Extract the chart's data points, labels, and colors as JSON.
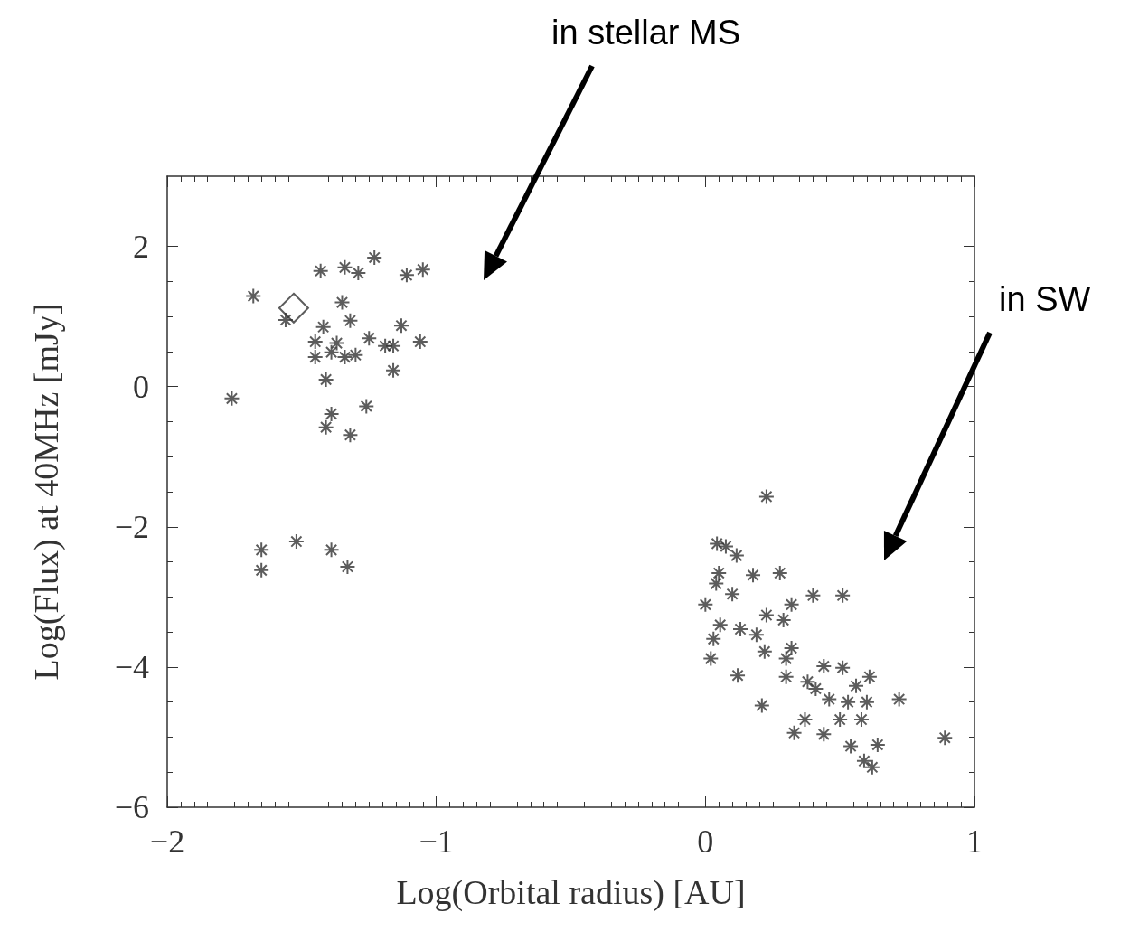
{
  "chart_data": {
    "type": "scatter",
    "xlabel": "Log(Orbital radius) [AU]",
    "ylabel": "Log(Flux) at 40MHz [mJy]",
    "xlim": [
      -2,
      1
    ],
    "xticks": [
      -2,
      -1,
      0,
      1
    ],
    "ylim": [
      -6,
      3
    ],
    "yticks": [
      -6,
      -4,
      -2,
      0,
      2
    ],
    "grid": false,
    "annotations": [
      "in stellar MS",
      "in SW"
    ],
    "series": [
      {
        "color": "#333333",
        "marker": "cross",
        "x": [
          -1.76,
          -1.68,
          -1.56,
          -1.43,
          -1.34,
          -1.29,
          -1.23,
          -1.11,
          -1.05,
          -1.06,
          -1.13,
          -1.16,
          -1.19,
          -1.16,
          -1.25,
          -1.35,
          -1.32,
          -1.42,
          -1.45,
          -1.45,
          -1.39,
          -1.37,
          -1.34,
          -1.3,
          -1.41,
          -1.39,
          -1.41,
          -1.26,
          -1.32,
          -1.65,
          -1.65,
          -1.52,
          -1.39,
          -1.33,
          0.227,
          0.043,
          0.076,
          0.116,
          0.177,
          0.277,
          0.05,
          0.04,
          0.1,
          0.0,
          0.4,
          0.51,
          0.32,
          0.227,
          0.29,
          0.055,
          0.13,
          0.19,
          0.03,
          0.02,
          0.22,
          0.32,
          0.3,
          0.44,
          0.51,
          0.12,
          0.3,
          0.38,
          0.41,
          0.46,
          0.56,
          0.61,
          0.53,
          0.6,
          0.72,
          0.21,
          0.37,
          0.5,
          0.58,
          0.33,
          0.44,
          0.89,
          0.54,
          0.64,
          0.59,
          0.62
        ],
        "values": [
          -0.17,
          1.29,
          0.95,
          1.65,
          1.7,
          1.62,
          1.84,
          1.59,
          1.67,
          0.64,
          0.87,
          0.58,
          0.58,
          0.23,
          0.69,
          1.2,
          0.94,
          0.85,
          0.64,
          0.42,
          0.49,
          0.62,
          0.42,
          0.45,
          0.1,
          -0.39,
          -0.58,
          -0.28,
          -0.69,
          -2.33,
          -2.62,
          -2.21,
          -2.33,
          -2.57,
          -1.57,
          -2.24,
          -2.28,
          -2.41,
          -2.69,
          -2.66,
          -2.66,
          -2.81,
          -2.96,
          -3.11,
          -2.98,
          -2.98,
          -3.11,
          -3.26,
          -3.33,
          -3.4,
          -3.46,
          -3.54,
          -3.6,
          -3.88,
          -3.78,
          -3.73,
          -3.88,
          -3.99,
          -4.01,
          -4.12,
          -4.14,
          -4.21,
          -4.31,
          -4.46,
          -4.27,
          -4.14,
          -4.5,
          -4.5,
          -4.46,
          -4.55,
          -4.75,
          -4.75,
          -4.75,
          -4.94,
          -4.96,
          -5.01,
          -5.13,
          -5.11,
          -5.34,
          -5.43
        ]
      },
      {
        "color": "#333333",
        "marker": "diamond",
        "x": [
          -1.53
        ],
        "values": [
          1.12
        ]
      }
    ]
  }
}
